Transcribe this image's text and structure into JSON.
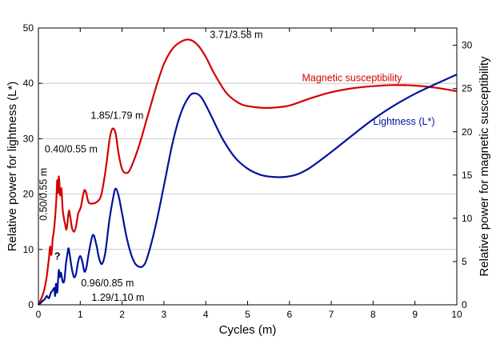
{
  "chart_data": {
    "type": "line",
    "xlabel": "Cycles (m)",
    "ylabel_left": "Relative power for lightness (L*)",
    "ylabel_right": "Relative power for magnetic susceptibility",
    "xlim": [
      0,
      10
    ],
    "ylim_left": [
      0,
      50
    ],
    "ylim_right": [
      0,
      32
    ],
    "x_ticks": [
      0,
      1,
      2,
      3,
      4,
      5,
      6,
      7,
      8,
      9,
      10
    ],
    "y_ticks_left": [
      0,
      10,
      20,
      30,
      40,
      50
    ],
    "y_ticks_right": [
      0,
      5,
      10,
      15,
      20,
      25,
      30
    ],
    "grid": "horizontal",
    "series": [
      {
        "name": "Magnetic susceptibility",
        "axis": "left",
        "color": "#d40000",
        "points": [
          [
            0,
            0
          ],
          [
            0.05,
            0.8
          ],
          [
            0.1,
            1.7
          ],
          [
            0.15,
            3.0
          ],
          [
            0.2,
            5.2
          ],
          [
            0.25,
            8.3
          ],
          [
            0.28,
            10.5
          ],
          [
            0.31,
            9.0
          ],
          [
            0.34,
            11.8
          ],
          [
            0.37,
            13.4
          ],
          [
            0.4,
            15.8
          ],
          [
            0.43,
            19.2
          ],
          [
            0.45,
            22.5
          ],
          [
            0.47,
            20.2
          ],
          [
            0.49,
            23.2
          ],
          [
            0.52,
            19.8
          ],
          [
            0.55,
            21.0
          ],
          [
            0.58,
            17.2
          ],
          [
            0.61,
            15.6
          ],
          [
            0.64,
            14.5
          ],
          [
            0.67,
            13.6
          ],
          [
            0.7,
            15.2
          ],
          [
            0.73,
            17.0
          ],
          [
            0.76,
            16.0
          ],
          [
            0.8,
            14.0
          ],
          [
            0.85,
            13.2
          ],
          [
            0.9,
            14.2
          ],
          [
            0.95,
            16.5
          ],
          [
            0.98,
            17.0
          ],
          [
            1.02,
            17.8
          ],
          [
            1.06,
            19.5
          ],
          [
            1.1,
            20.7
          ],
          [
            1.14,
            20.3
          ],
          [
            1.2,
            18.5
          ],
          [
            1.3,
            18.3
          ],
          [
            1.4,
            18.6
          ],
          [
            1.5,
            19.8
          ],
          [
            1.6,
            24.0
          ],
          [
            1.7,
            29.8
          ],
          [
            1.75,
            31.5
          ],
          [
            1.8,
            31.8
          ],
          [
            1.85,
            30.8
          ],
          [
            1.92,
            27.2
          ],
          [
            2.0,
            24.5
          ],
          [
            2.1,
            23.8
          ],
          [
            2.2,
            24.6
          ],
          [
            2.4,
            28.6
          ],
          [
            2.6,
            33.8
          ],
          [
            2.8,
            39.0
          ],
          [
            3.0,
            43.5
          ],
          [
            3.2,
            46.2
          ],
          [
            3.4,
            47.5
          ],
          [
            3.6,
            47.9
          ],
          [
            3.8,
            47.0
          ],
          [
            4.0,
            44.8
          ],
          [
            4.2,
            41.8
          ],
          [
            4.5,
            38.2
          ],
          [
            4.8,
            36.4
          ],
          [
            5.0,
            35.9
          ],
          [
            5.3,
            35.6
          ],
          [
            5.6,
            35.6
          ],
          [
            6.0,
            36.0
          ],
          [
            6.5,
            37.3
          ],
          [
            7.0,
            38.4
          ],
          [
            7.5,
            39.1
          ],
          [
            8.0,
            39.5
          ],
          [
            8.5,
            39.7
          ],
          [
            9.0,
            39.6
          ],
          [
            9.5,
            39.2
          ],
          [
            10.0,
            38.6
          ]
        ]
      },
      {
        "name": "Lightness (L*)",
        "axis": "left",
        "color": "#00139a",
        "points": [
          [
            0,
            0
          ],
          [
            0.05,
            0.3
          ],
          [
            0.1,
            0.7
          ],
          [
            0.15,
            1.0
          ],
          [
            0.2,
            1.6
          ],
          [
            0.25,
            1.2
          ],
          [
            0.3,
            2.2
          ],
          [
            0.34,
            2.6
          ],
          [
            0.38,
            3.0
          ],
          [
            0.4,
            1.6
          ],
          [
            0.42,
            3.8
          ],
          [
            0.45,
            2.2
          ],
          [
            0.47,
            4.5
          ],
          [
            0.49,
            6.3
          ],
          [
            0.51,
            5.0
          ],
          [
            0.54,
            5.8
          ],
          [
            0.58,
            4.2
          ],
          [
            0.62,
            4.4
          ],
          [
            0.66,
            7.5
          ],
          [
            0.7,
            9.5
          ],
          [
            0.72,
            10.2
          ],
          [
            0.75,
            9.0
          ],
          [
            0.8,
            6.5
          ],
          [
            0.85,
            5.0
          ],
          [
            0.9,
            5.6
          ],
          [
            0.95,
            7.8
          ],
          [
            1.0,
            8.8
          ],
          [
            1.05,
            7.8
          ],
          [
            1.1,
            6.0
          ],
          [
            1.15,
            6.8
          ],
          [
            1.2,
            9.2
          ],
          [
            1.3,
            12.6
          ],
          [
            1.38,
            11.0
          ],
          [
            1.45,
            8.4
          ],
          [
            1.52,
            7.4
          ],
          [
            1.6,
            9.5
          ],
          [
            1.7,
            15.5
          ],
          [
            1.8,
            19.8
          ],
          [
            1.85,
            21.0
          ],
          [
            1.92,
            19.6
          ],
          [
            2.0,
            16.5
          ],
          [
            2.1,
            12.5
          ],
          [
            2.2,
            9.5
          ],
          [
            2.3,
            7.6
          ],
          [
            2.4,
            6.9
          ],
          [
            2.5,
            7.0
          ],
          [
            2.6,
            8.5
          ],
          [
            2.8,
            14.2
          ],
          [
            3.0,
            21.5
          ],
          [
            3.2,
            29.0
          ],
          [
            3.4,
            34.5
          ],
          [
            3.6,
            37.6
          ],
          [
            3.75,
            38.2
          ],
          [
            3.9,
            37.4
          ],
          [
            4.1,
            34.6
          ],
          [
            4.4,
            30.0
          ],
          [
            4.7,
            26.6
          ],
          [
            5.0,
            24.6
          ],
          [
            5.3,
            23.5
          ],
          [
            5.6,
            23.1
          ],
          [
            5.9,
            23.1
          ],
          [
            6.2,
            23.6
          ],
          [
            6.5,
            24.8
          ],
          [
            7.0,
            27.6
          ],
          [
            7.5,
            30.6
          ],
          [
            8.0,
            33.5
          ],
          [
            8.5,
            36.0
          ],
          [
            9.0,
            38.1
          ],
          [
            9.5,
            39.9
          ],
          [
            10.0,
            41.6
          ]
        ]
      }
    ],
    "annotations": [
      {
        "text": "3.71/3.58 m",
        "x": 4.1,
        "y": 48.2
      },
      {
        "text": "1.85/1.79 m",
        "x": 1.25,
        "y": 33.6
      },
      {
        "text": "0.40/0.55 m",
        "x": 0.15,
        "y": 27.5
      },
      {
        "text": "0.50/0.55 m",
        "x": 0.2,
        "y": 15.2,
        "rotate": -90
      },
      {
        "text": "?",
        "x": 0.38,
        "y": 8.2
      },
      {
        "text": "0.96/0.85 m",
        "x": 1.02,
        "y": 3.3
      },
      {
        "text": "1.29/1.10 m",
        "x": 1.27,
        "y": 0.7
      },
      {
        "text": "Magnetic susceptibility",
        "x": 6.3,
        "y": 40.4,
        "series": 0
      },
      {
        "text": "Lightness (L*)",
        "x": 8.0,
        "y": 32.5,
        "series": 1
      }
    ]
  }
}
